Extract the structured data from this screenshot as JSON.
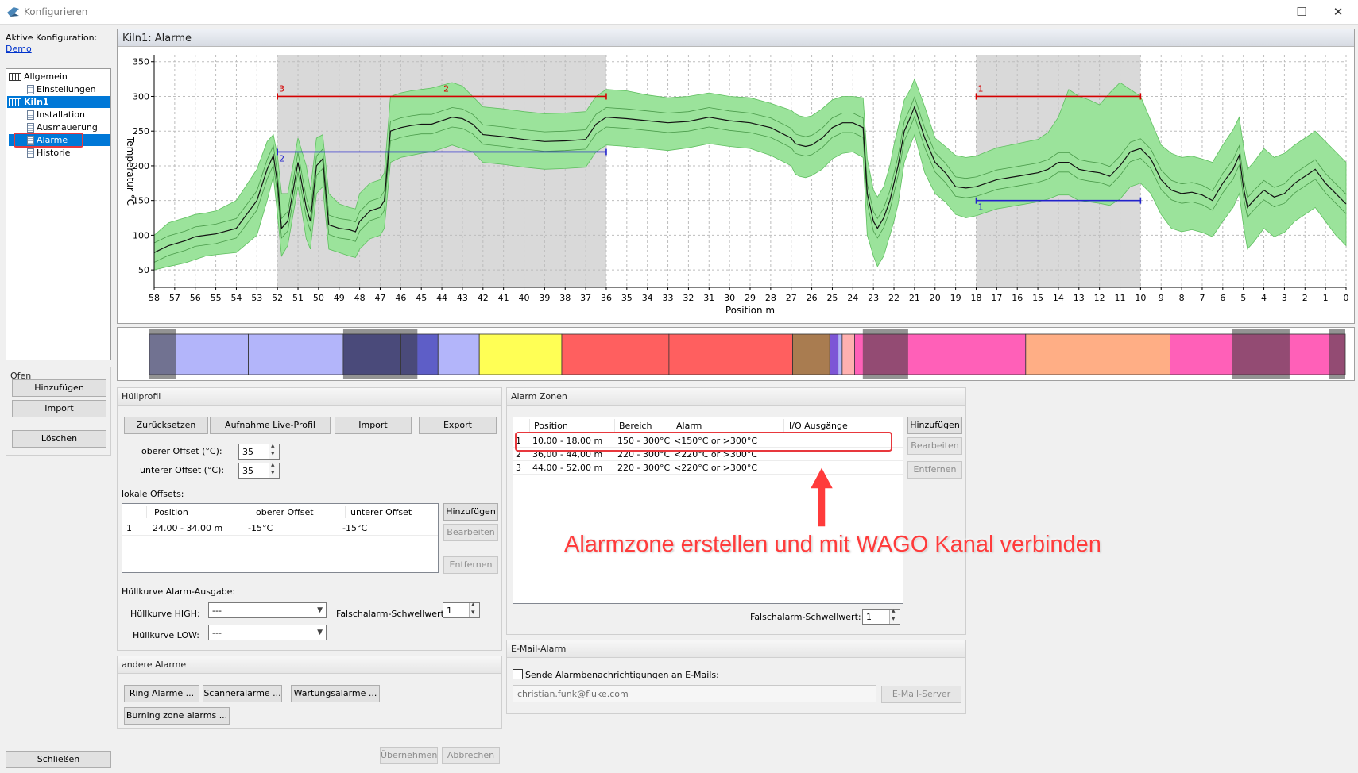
{
  "window": {
    "title": "Konfigurieren",
    "maximize_glyph": "☐",
    "close_glyph": "✕"
  },
  "active_config": {
    "label": "Aktive Konfiguration:",
    "value": "Demo"
  },
  "tree": {
    "items": [
      {
        "label": "Allgemein",
        "icon": "table-icon"
      },
      {
        "label": "Einstellungen",
        "icon": "page-icon"
      },
      {
        "label": "Kiln1",
        "icon": "table-icon"
      },
      {
        "label": "Installation",
        "icon": "page-icon"
      },
      {
        "label": "Ausmauerung",
        "icon": "page-icon"
      },
      {
        "label": "Alarme",
        "icon": "page-icon"
      },
      {
        "label": "Historie",
        "icon": "page-icon"
      }
    ]
  },
  "ofen": {
    "title": "Ofen",
    "add": "Hinzufügen",
    "import": "Import",
    "delete": "Löschen"
  },
  "close_button": "Schließen",
  "chart_panel_title": "Kiln1: Alarme",
  "chart_data": {
    "type": "area",
    "title": "",
    "xlabel": "Position m",
    "ylabel": "Temperatur °C",
    "x_reversed": true,
    "xlim": [
      0,
      58
    ],
    "ylim": [
      25,
      360
    ],
    "x_ticks": [
      58,
      57,
      56,
      55,
      54,
      53,
      52,
      51,
      50,
      49,
      48,
      47,
      46,
      45,
      44,
      43,
      42,
      41,
      40,
      39,
      38,
      37,
      36,
      35,
      34,
      33,
      32,
      31,
      30,
      29,
      28,
      27,
      26,
      25,
      24,
      23,
      22,
      21,
      20,
      19,
      18,
      17,
      16,
      15,
      14,
      13,
      12,
      11,
      10,
      9,
      8,
      7,
      6,
      5,
      4,
      3,
      2,
      1,
      0
    ],
    "y_ticks": [
      350,
      300,
      250,
      200,
      150,
      100,
      50
    ],
    "grid": true,
    "shaded_ranges": [
      [
        36,
        52
      ],
      [
        10,
        18
      ]
    ],
    "x": [
      58,
      57.3,
      56.5,
      56,
      55.5,
      55,
      54,
      53,
      52.5,
      52.2,
      52,
      51.8,
      51.5,
      51,
      50.6,
      50.4,
      50.1,
      49.8,
      49.5,
      49,
      48.5,
      48.2,
      48,
      47.5,
      47,
      46.8,
      46.5,
      46,
      45.5,
      45,
      44.5,
      44,
      43.5,
      43,
      42.5,
      42,
      41,
      40,
      39,
      38,
      37,
      36.5,
      36,
      35,
      34,
      33,
      32,
      31,
      30,
      29,
      28,
      27,
      26.8,
      26.6,
      26.3,
      26,
      25.5,
      25,
      24.5,
      24,
      23.5,
      23.3,
      23,
      22.8,
      22.5,
      22.2,
      22,
      21.8,
      21.5,
      21.2,
      21,
      20.5,
      20,
      19.5,
      19,
      18.5,
      18,
      17.5,
      17,
      16,
      15,
      14.5,
      14,
      13.5,
      13,
      12.5,
      12,
      11.5,
      11,
      10.5,
      10,
      9.5,
      9,
      8.5,
      8,
      7.5,
      7,
      6.5,
      6,
      5.5,
      5.2,
      5,
      4.8,
      4.5,
      4,
      3.5,
      3,
      2.5,
      2,
      1.5,
      1,
      0.5,
      0
    ],
    "series": [
      {
        "role": "mean",
        "values": [
          75,
          85,
          92,
          98,
          100,
          102,
          110,
          150,
          195,
          215,
          175,
          110,
          120,
          205,
          140,
          120,
          200,
          210,
          115,
          110,
          108,
          105,
          120,
          135,
          140,
          150,
          250,
          255,
          258,
          260,
          260,
          265,
          270,
          268,
          260,
          245,
          242,
          238,
          235,
          236,
          238,
          260,
          270,
          268,
          265,
          262,
          264,
          270,
          265,
          262,
          255,
          240,
          232,
          230,
          228,
          230,
          240,
          255,
          262,
          262,
          255,
          160,
          120,
          110,
          125,
          150,
          175,
          200,
          250,
          270,
          285,
          240,
          205,
          190,
          170,
          168,
          170,
          175,
          180,
          185,
          190,
          195,
          205,
          205,
          195,
          192,
          190,
          185,
          200,
          220,
          225,
          210,
          180,
          165,
          160,
          162,
          158,
          150,
          175,
          195,
          215,
          170,
          140,
          150,
          165,
          155,
          160,
          175,
          185,
          195,
          175,
          160,
          145
        ]
      },
      {
        "role": "upper",
        "values": [
          100,
          118,
          125,
          130,
          132,
          135,
          150,
          195,
          235,
          245,
          215,
          160,
          160,
          240,
          200,
          165,
          240,
          245,
          160,
          145,
          140,
          138,
          160,
          175,
          180,
          190,
          300,
          305,
          308,
          310,
          312,
          316,
          320,
          315,
          300,
          285,
          282,
          278,
          275,
          276,
          278,
          300,
          310,
          308,
          302,
          298,
          300,
          305,
          300,
          298,
          290,
          280,
          275,
          272,
          270,
          272,
          282,
          295,
          300,
          300,
          298,
          210,
          165,
          155,
          170,
          200,
          230,
          255,
          295,
          310,
          325,
          285,
          240,
          228,
          215,
          212,
          214,
          220,
          226,
          232,
          238,
          248,
          270,
          310,
          300,
          295,
          288,
          305,
          320,
          310,
          300,
          265,
          230,
          218,
          212,
          214,
          210,
          205,
          230,
          252,
          270,
          230,
          195,
          205,
          225,
          212,
          218,
          230,
          240,
          250,
          235,
          220,
          205
        ]
      },
      {
        "role": "lower",
        "values": [
          50,
          55,
          60,
          65,
          70,
          72,
          75,
          100,
          150,
          185,
          130,
          70,
          85,
          170,
          95,
          80,
          160,
          170,
          80,
          75,
          70,
          68,
          80,
          95,
          100,
          110,
          205,
          212,
          215,
          218,
          220,
          225,
          230,
          225,
          220,
          205,
          202,
          198,
          195,
          196,
          198,
          220,
          230,
          228,
          225,
          222,
          226,
          232,
          228,
          225,
          215,
          200,
          188,
          185,
          183,
          186,
          195,
          210,
          218,
          220,
          212,
          100,
          70,
          55,
          70,
          100,
          120,
          145,
          205,
          230,
          245,
          190,
          160,
          148,
          130,
          125,
          128,
          133,
          138,
          143,
          148,
          152,
          158,
          158,
          150,
          148,
          146,
          143,
          152,
          170,
          175,
          160,
          130,
          110,
          105,
          108,
          104,
          98,
          120,
          140,
          160,
          115,
          80,
          90,
          110,
          98,
          104,
          120,
          130,
          140,
          120,
          100,
          85
        ]
      }
    ],
    "threshold_lines": [
      {
        "color": "#d40000",
        "x": [
          52,
          36
        ],
        "y": 300,
        "labels": [
          "3",
          "2"
        ]
      },
      {
        "color": "#2222cc",
        "x": [
          52,
          36
        ],
        "y": 220,
        "labels": [
          "2"
        ]
      },
      {
        "color": "#d40000",
        "x": [
          18,
          10
        ],
        "y": 300,
        "labels": [
          "1"
        ]
      },
      {
        "color": "#2222cc",
        "x": [
          18,
          10
        ],
        "y": 150,
        "labels": [
          "1"
        ]
      }
    ]
  },
  "zonebar": {
    "blocks": [
      {
        "from": 58,
        "to": 53.2,
        "color": "#b3b5fa"
      },
      {
        "from": 53.2,
        "to": 48.6,
        "color": "#b3b5fa"
      },
      {
        "from": 48.6,
        "to": 45.8,
        "color": "#5e5ec7"
      },
      {
        "from": 45.8,
        "to": 44,
        "color": "#5e5ec7"
      },
      {
        "from": 44,
        "to": 42,
        "color": "#b3b5fa"
      },
      {
        "from": 42,
        "to": 38,
        "color": "#ffff55"
      },
      {
        "from": 38,
        "to": 32.8,
        "color": "#ff5f5f"
      },
      {
        "from": 32.8,
        "to": 26.8,
        "color": "#ff5f5f"
      },
      {
        "from": 26.8,
        "to": 25,
        "color": "#a97c50"
      },
      {
        "from": 25,
        "to": 24.6,
        "color": "#7d55d6"
      },
      {
        "from": 24.6,
        "to": 24.4,
        "color": "#b3b5fa"
      },
      {
        "from": 24.4,
        "to": 23.8,
        "color": "#ffb0b0"
      },
      {
        "from": 23.8,
        "to": 15.5,
        "color": "#ff60b8"
      },
      {
        "from": 15.5,
        "to": 8.5,
        "color": "#ffae85"
      },
      {
        "from": 8.5,
        "to": 0,
        "color": "#ff60b8"
      }
    ],
    "overlays": [
      [
        56.7,
        58
      ],
      [
        45,
        48.6
      ],
      [
        21.2,
        23.4
      ],
      [
        2.7,
        5.5
      ],
      [
        0,
        0.8
      ]
    ]
  },
  "huellprofil": {
    "title": "Hüllprofil",
    "reset": "Zurücksetzen",
    "record": "Aufnahme Live-Profil",
    "import": "Import",
    "export": "Export",
    "upper_label": "oberer Offset (°C):",
    "upper_value": "35",
    "lower_label": "unterer Offset (°C):",
    "lower_value": "35",
    "local_label": "lokale Offsets:",
    "columns": [
      "Position",
      "oberer Offset",
      "unterer Offset"
    ],
    "rows": [
      {
        "n": "1",
        "position": "24.00 - 34.00 m",
        "upper": "-15°C",
        "lower": "-15°C"
      }
    ],
    "add": "Hinzufügen",
    "edit": "Bearbeiten",
    "remove": "Entfernen",
    "alarm_output_label": "Hüllkurve Alarm-Ausgabe:",
    "high_label": "Hüllkurve  HIGH:",
    "high_value": "---",
    "low_label": "Hüllkurve LOW:",
    "low_value": "---",
    "false_label": "Falschalarm-Schwellwert:",
    "false_value": "1"
  },
  "alarm_zones": {
    "title": "Alarm Zonen",
    "columns": [
      "Position",
      "Bereich",
      "Alarm",
      "I/O Ausgänge"
    ],
    "rows": [
      {
        "n": "1",
        "position": "10,00 - 18,00 m",
        "range": "150 - 300°C",
        "alarm": "<150°C or >300°C",
        "io": ""
      },
      {
        "n": "2",
        "position": "36,00 - 44,00 m",
        "range": "220 - 300°C",
        "alarm": "<220°C or >300°C",
        "io": ""
      },
      {
        "n": "3",
        "position": "44,00 - 52,00 m",
        "range": "220 - 300°C",
        "alarm": "<220°C or >300°C",
        "io": ""
      }
    ],
    "add": "Hinzufügen",
    "edit": "Bearbeiten",
    "remove": "Entfernen",
    "false_label": "Falschalarm-Schwellwert:",
    "false_value": "1"
  },
  "email": {
    "title": "E-Mail-Alarm",
    "checkbox_label": "Sende Alarmbenachrichtigungen an E-Mails:",
    "address": "christian.funk@fluke.com",
    "server": "E-Mail-Server"
  },
  "other_alarms": {
    "title": "andere Alarme",
    "ring": "Ring Alarme ...",
    "scanner": "Scanneralarme ...",
    "maintenance": "Wartungsalarme ...",
    "burning": "Burning zone alarms ..."
  },
  "apply": "Übernehmen",
  "cancel": "Abbrechen",
  "annotation": "Alarmzone erstellen und mit WAGO Kanal verbinden",
  "colors": {
    "selection": "#0078d7",
    "band": "#9be39b",
    "band_edge": "#5fbf5f",
    "annotation": "#ff3b3b",
    "shade": "#d9d9d9"
  }
}
